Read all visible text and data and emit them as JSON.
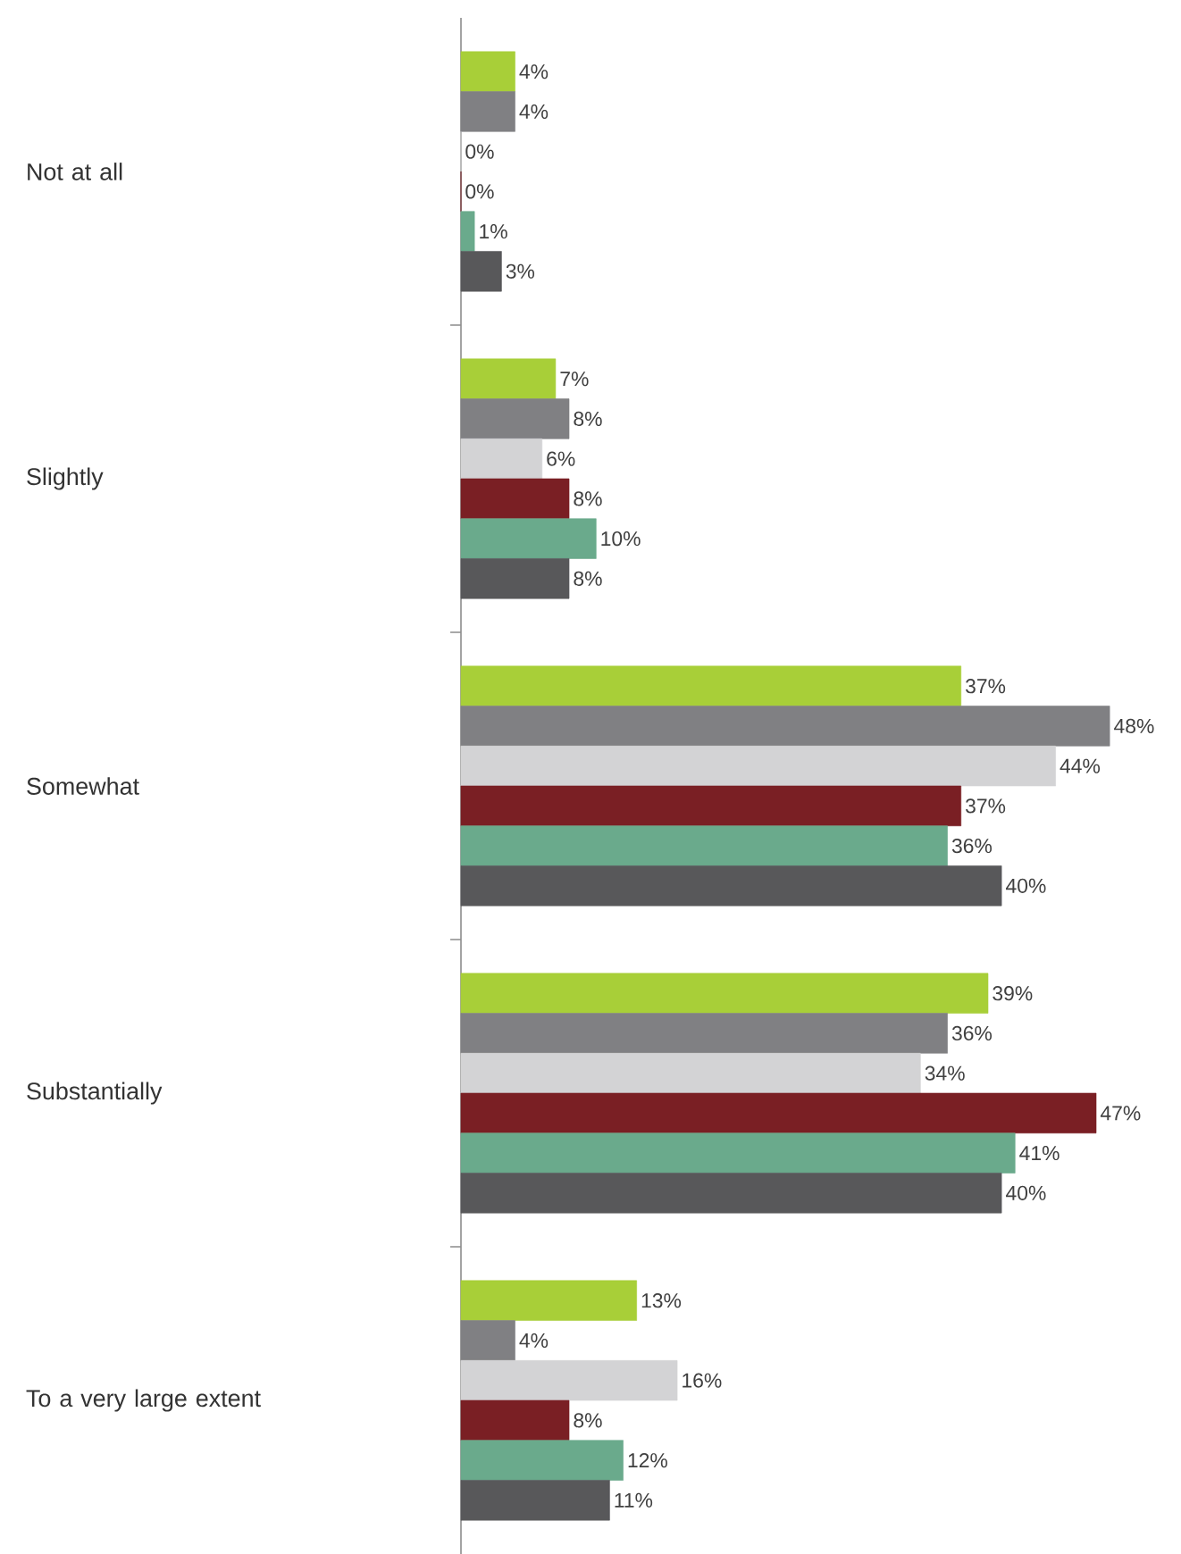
{
  "chart_data": {
    "type": "bar",
    "orientation": "horizontal",
    "categories": [
      "Not at all",
      "Slightly",
      "Somewhat",
      "Substantially",
      "To a very large extent"
    ],
    "series": [
      {
        "color": "#a8cf38",
        "values": [
          4,
          7,
          37,
          39,
          13
        ],
        "value_labels": [
          "4%",
          "7%",
          "37%",
          "39%",
          "13%"
        ]
      },
      {
        "color": "#808083",
        "values": [
          4,
          8,
          48,
          36,
          4
        ],
        "value_labels": [
          "4%",
          "8%",
          "48%",
          "36%",
          "4%"
        ]
      },
      {
        "color": "#d3d3d5",
        "values": [
          0,
          6,
          44,
          34,
          16
        ],
        "value_labels": [
          "0%",
          "6%",
          "44%",
          "34%",
          "16%"
        ]
      },
      {
        "color": "#7a1f24",
        "values": [
          0,
          8,
          37,
          47,
          8
        ],
        "value_labels": [
          "0%",
          "8%",
          "37%",
          "47%",
          "8%"
        ]
      },
      {
        "color": "#6aaa8c",
        "values": [
          1,
          10,
          36,
          41,
          12
        ],
        "value_labels": [
          "1%",
          "10%",
          "36%",
          "41%",
          "12%"
        ]
      },
      {
        "color": "#58585a",
        "values": [
          3,
          8,
          40,
          40,
          11
        ],
        "value_labels": [
          "3%",
          "8%",
          "40%",
          "40%",
          "11%"
        ]
      }
    ]
  }
}
